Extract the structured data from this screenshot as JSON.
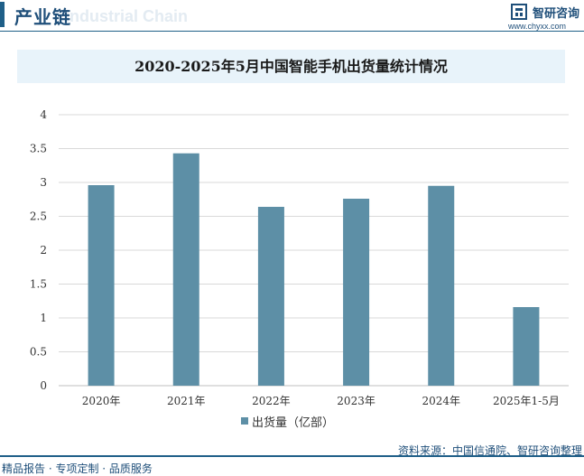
{
  "header": {
    "title": "产业链",
    "ghost_text": "Industrial Chain",
    "logo_name": "智研咨询",
    "logo_url": "www.chyxx.com"
  },
  "colors": {
    "bar": "#5d8fa6",
    "accent": "#1f5f88",
    "title_band": "#e8f3fa"
  },
  "chart_data": {
    "type": "bar",
    "title": "2020-2025年5月中国智能手机出货量统计情况",
    "categories": [
      "2020年",
      "2021年",
      "2022年",
      "2023年",
      "2024年",
      "2025年1-5月"
    ],
    "series": [
      {
        "name": "出货量（亿部）",
        "values": [
          2.96,
          3.43,
          2.64,
          2.76,
          2.95,
          1.16
        ]
      }
    ],
    "ylim": [
      0,
      4
    ],
    "yticks": [
      "0",
      "0.5",
      "1",
      "1.5",
      "2",
      "2.5",
      "3",
      "3.5",
      "4"
    ],
    "ytick_values": [
      0,
      0.5,
      1,
      1.5,
      2,
      2.5,
      3,
      3.5,
      4
    ],
    "grid": true,
    "legend": "bottom"
  },
  "footer": {
    "left": "精品报告 · 专项定制 · 品质服务",
    "source": "资料来源：中国信通院、智研咨询整理"
  }
}
